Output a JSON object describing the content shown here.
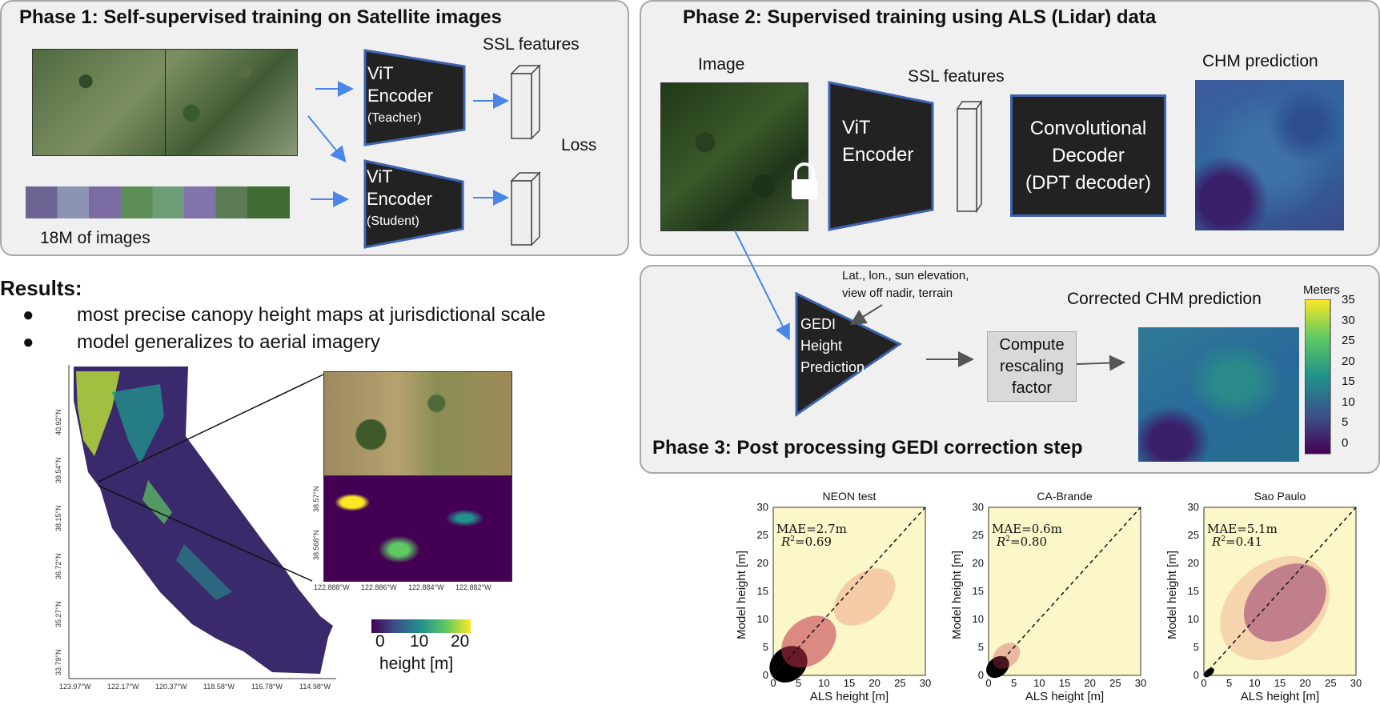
{
  "phase1": {
    "title": "Phase 1: Self-supervised training on Satellite images",
    "ssl_features": "SSL features",
    "teacher": {
      "line1": "ViT",
      "line2": "Encoder",
      "sub": "(Teacher)"
    },
    "student": {
      "line1": "ViT",
      "line2": "Encoder",
      "sub": "(Student)"
    },
    "loss": "Loss",
    "dataset": "18M of images"
  },
  "phase2": {
    "title": "Phase 2: Supervised training using ALS (Lidar) data",
    "image_label": "Image",
    "ssl_features": "SSL features",
    "chm_label": "CHM prediction",
    "encoder": {
      "line1": "ViT",
      "line2": "Encoder"
    },
    "decoder": {
      "line1": "Convolutional",
      "line2": "Decoder",
      "line3": "(DPT decoder)"
    }
  },
  "phase3": {
    "title": "Phase 3: Post processing GEDI correction step",
    "inputs_line1": "Lat., lon., sun elevation,",
    "inputs_line2": "view off nadir, terrain",
    "gedi": {
      "line1": "GEDI",
      "line2": "Height",
      "line3": "Prediction"
    },
    "rescale": {
      "line1": "Compute",
      "line2": "rescaling",
      "line3": "factor"
    },
    "corrected_label": "Corrected CHM prediction",
    "colorbar_title": "Meters",
    "colorbar_ticks": [
      "35",
      "30",
      "25",
      "20",
      "15",
      "10",
      "5",
      "0"
    ]
  },
  "results": {
    "title": "Results:",
    "bullets": [
      "most precise canopy height maps at jurisdictional scale",
      "model generalizes to aerial imagery"
    ]
  },
  "map": {
    "lat_ticks": [
      "40.92°N",
      "39.54°N",
      "38.15°N",
      "36.72°N",
      "35.27°N",
      "33.79°N"
    ],
    "lon_ticks": [
      "123.97°W",
      "122.17°W",
      "120.37°W",
      "118.58°W",
      "116.78°W",
      "114.98°W"
    ],
    "inset_lat_ticks": [
      "38.57°N",
      "38.568°N"
    ],
    "inset_lon_ticks": [
      "122.888°W",
      "122.886°W",
      "122.884°W",
      "122.882°W"
    ],
    "colorbar_ticks": [
      "0",
      "10",
      "20"
    ],
    "colorbar_label": "height [m]"
  },
  "chart_data": [
    {
      "type": "heatmap",
      "title": "NEON test",
      "xlabel": "ALS height [m]",
      "ylabel": "Model height [m]",
      "xlim": [
        0,
        30
      ],
      "ylim": [
        0,
        30
      ],
      "xticks": [
        "0",
        "5",
        "10",
        "15",
        "20",
        "25",
        "30"
      ],
      "yticks": [
        "0",
        "5",
        "10",
        "15",
        "20",
        "25",
        "30"
      ],
      "mae": "MAE=2.7m",
      "r2_value": "=0.69",
      "r2_symbol": "R",
      "r2_exp": "2"
    },
    {
      "type": "heatmap",
      "title": "CA-Brande",
      "xlabel": "ALS height [m]",
      "ylabel": "Model height [m]",
      "xlim": [
        0,
        30
      ],
      "ylim": [
        0,
        30
      ],
      "xticks": [
        "0",
        "5",
        "10",
        "15",
        "20",
        "25",
        "30"
      ],
      "yticks": [
        "0",
        "5",
        "10",
        "15",
        "20",
        "25",
        "30"
      ],
      "mae": "MAE=0.6m",
      "r2_value": "=0.80",
      "r2_symbol": "R",
      "r2_exp": "2"
    },
    {
      "type": "heatmap",
      "title": "Sao Paulo",
      "xlabel": "ALS height [m]",
      "ylabel": "Model height [m]",
      "xlim": [
        0,
        30
      ],
      "ylim": [
        0,
        30
      ],
      "xticks": [
        "0",
        "5",
        "10",
        "15",
        "20",
        "25",
        "30"
      ],
      "yticks": [
        "0",
        "5",
        "10",
        "15",
        "20",
        "25",
        "30"
      ],
      "mae": "MAE=5.1m",
      "r2_value": "=0.41",
      "r2_symbol": "R",
      "r2_exp": "2"
    }
  ],
  "colors": {
    "arrow_blue": "#4a86e8",
    "panel_bg": "#f0f0f0",
    "box_dark": "#222222",
    "box_border": "#3d63b0"
  }
}
